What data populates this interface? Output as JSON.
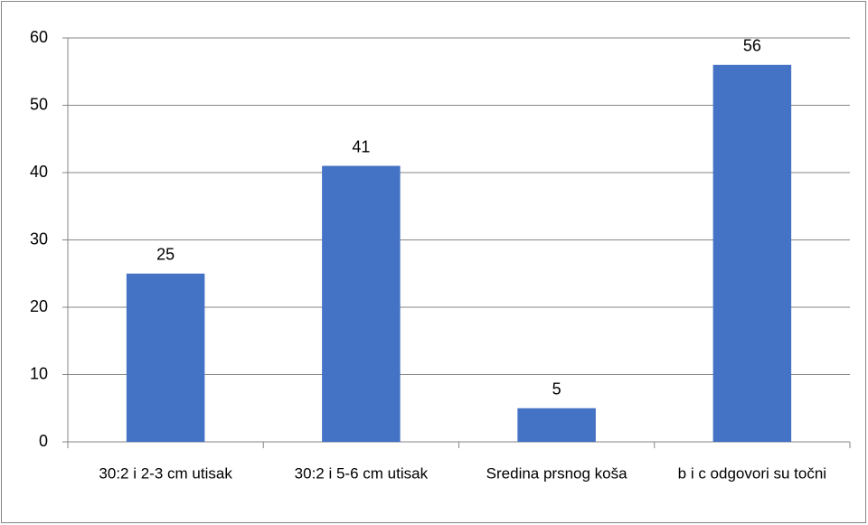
{
  "chart_data": {
    "type": "bar",
    "categories": [
      "30:2 i 2-3 cm utisak",
      "30:2 i 5-6 cm utisak",
      "Sredina prsnog koša",
      "b i c odgovori su točni"
    ],
    "values": [
      25,
      41,
      5,
      56
    ],
    "color": "#4472c4",
    "ylim": [
      0,
      60
    ],
    "yticks": [
      0,
      10,
      20,
      30,
      40,
      50,
      60
    ],
    "grid": true
  }
}
